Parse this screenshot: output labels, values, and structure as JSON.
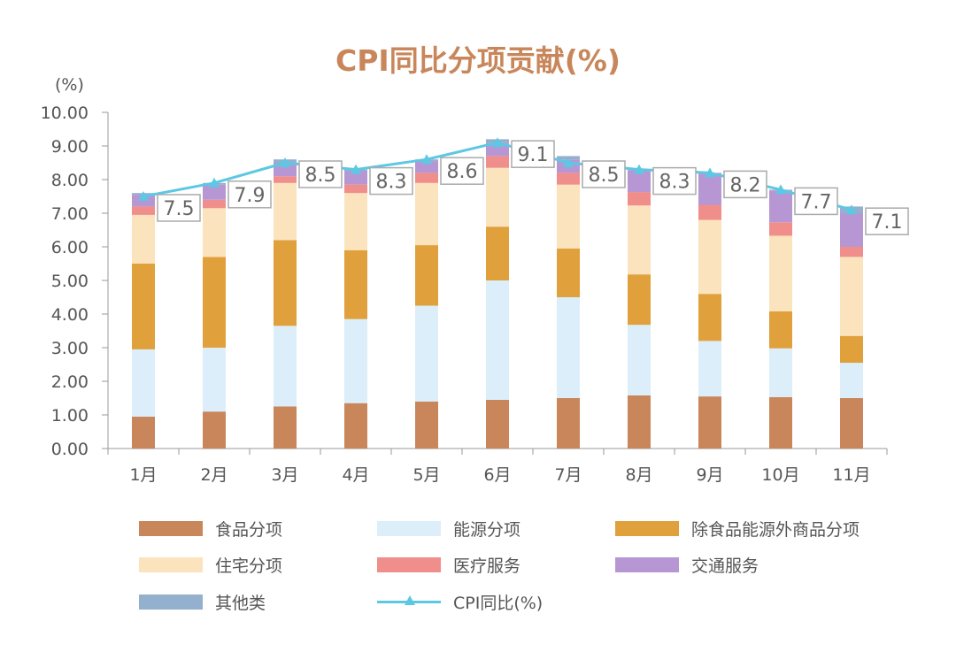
{
  "chart_data": {
    "type": "bar",
    "stacked": true,
    "title": "CPI同比分项贡献(%)",
    "unit_label": "(%)",
    "categories": [
      "1月",
      "2月",
      "3月",
      "4月",
      "5月",
      "6月",
      "7月",
      "8月",
      "9月",
      "10月",
      "11月"
    ],
    "ylim": [
      0,
      10
    ],
    "yticks": [
      "0.00",
      "1.00",
      "2.00",
      "3.00",
      "4.00",
      "5.00",
      "6.00",
      "7.00",
      "8.00",
      "9.00",
      "10.00"
    ],
    "series": [
      {
        "name": "食品分项",
        "color": "#C8865A",
        "values": [
          0.95,
          1.1,
          1.25,
          1.35,
          1.4,
          1.45,
          1.5,
          1.58,
          1.55,
          1.53,
          1.5
        ]
      },
      {
        "name": "能源分项",
        "color": "#DCEEFA",
        "values": [
          2.0,
          1.9,
          2.4,
          2.5,
          2.85,
          3.55,
          3.0,
          2.1,
          1.65,
          1.45,
          1.05
        ]
      },
      {
        "name": "除食品能源外商品分项",
        "color": "#E0A03C",
        "values": [
          2.55,
          2.7,
          2.55,
          2.05,
          1.8,
          1.6,
          1.45,
          1.5,
          1.4,
          1.1,
          0.8
        ]
      },
      {
        "name": "住宅分项",
        "color": "#FBE3BD",
        "values": [
          1.45,
          1.45,
          1.7,
          1.7,
          1.85,
          1.75,
          1.9,
          2.05,
          2.2,
          2.25,
          2.35
        ]
      },
      {
        "name": "医疗服务",
        "color": "#F08E8C",
        "values": [
          0.25,
          0.25,
          0.2,
          0.25,
          0.3,
          0.35,
          0.35,
          0.4,
          0.45,
          0.4,
          0.3
        ]
      },
      {
        "name": "交通服务",
        "color": "#B697D4",
        "values": [
          0.35,
          0.45,
          0.4,
          0.4,
          0.35,
          0.4,
          0.4,
          0.65,
          0.95,
          0.95,
          1.0
        ]
      },
      {
        "name": "其他类",
        "color": "#93B0CE",
        "values": [
          0.05,
          0.05,
          0.1,
          0.05,
          0.05,
          0.1,
          0.1,
          0.02,
          0.0,
          0.02,
          0.2
        ]
      }
    ],
    "line": {
      "name": "CPI同比(%)",
      "color": "#5CC8E3",
      "values": [
        7.5,
        7.9,
        8.5,
        8.3,
        8.6,
        9.1,
        8.5,
        8.3,
        8.2,
        7.7,
        7.1
      ]
    },
    "data_labels": [
      "7.5",
      "7.9",
      "8.5",
      "8.3",
      "8.6",
      "9.1",
      "8.5",
      "8.3",
      "8.2",
      "7.7",
      "7.1"
    ],
    "legend_position": "bottom"
  }
}
